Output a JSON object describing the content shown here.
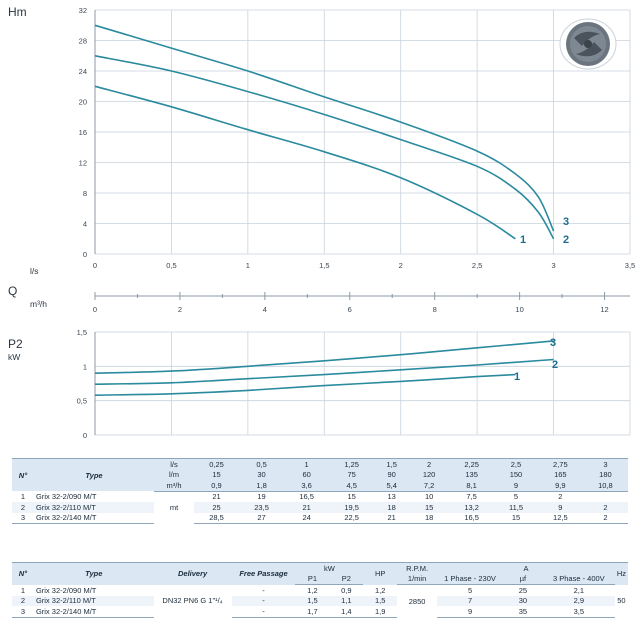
{
  "chart_data": [
    {
      "type": "line",
      "ylabel": "Hm",
      "xlabel_unit": "l/s",
      "x_ticks": [
        "0",
        "0,5",
        "1",
        "1,5",
        "2",
        "2,5",
        "3",
        "3,5"
      ],
      "y_ticks": [
        "0",
        "4",
        "8",
        "12",
        "16",
        "20",
        "24",
        "28",
        "32"
      ],
      "xlim": [
        0,
        3.5
      ],
      "ylim": [
        0,
        32
      ],
      "grid": true,
      "series": [
        {
          "name": "1",
          "x": [
            0,
            0.5,
            1,
            1.5,
            2,
            2.5,
            2.75
          ],
          "y": [
            22,
            19.3,
            16.3,
            13.4,
            10,
            5.2,
            2
          ]
        },
        {
          "name": "2",
          "x": [
            0,
            0.5,
            1,
            1.5,
            2,
            2.5,
            2.75,
            2.9,
            3
          ],
          "y": [
            26,
            24,
            21.3,
            18.3,
            15,
            11.5,
            8.5,
            5.5,
            2
          ]
        },
        {
          "name": "3",
          "x": [
            0,
            0.5,
            1,
            1.5,
            2,
            2.5,
            2.75,
            2.9,
            3
          ],
          "y": [
            30,
            27,
            24,
            20.6,
            17.3,
            13.5,
            10.5,
            7.5,
            3
          ]
        }
      ]
    },
    {
      "type": "axis",
      "xlabel": "Q",
      "xlabel_unit": "m³/h",
      "x_ticks": [
        "0",
        "2",
        "4",
        "6",
        "8",
        "10",
        "12"
      ],
      "xlim": [
        0,
        12.6
      ]
    },
    {
      "type": "line",
      "ylabel": "P2",
      "ylabel_unit": "kW",
      "y_ticks": [
        "0",
        "0,5",
        "1",
        "1,5"
      ],
      "ylim": [
        0,
        1.5
      ],
      "xlim": [
        0,
        3.5
      ],
      "grid": true,
      "series": [
        {
          "name": "1",
          "x": [
            0,
            0.5,
            1,
            1.5,
            2,
            2.5,
            2.75
          ],
          "y": [
            0.58,
            0.6,
            0.65,
            0.72,
            0.78,
            0.85,
            0.88
          ]
        },
        {
          "name": "2",
          "x": [
            0,
            0.5,
            1,
            1.5,
            2,
            2.5,
            3
          ],
          "y": [
            0.74,
            0.76,
            0.82,
            0.88,
            0.95,
            1.02,
            1.1
          ]
        },
        {
          "name": "3",
          "x": [
            0,
            0.5,
            1,
            1.5,
            2,
            2.5,
            3
          ],
          "y": [
            0.9,
            0.93,
            1.0,
            1.08,
            1.17,
            1.27,
            1.37
          ]
        }
      ]
    }
  ],
  "table1": {
    "col_no": "N°",
    "col_type": "Type",
    "unit_ls": "l/s",
    "unit_lm": "l/m",
    "unit_m3h": "m³/h",
    "unit_mt": "mt",
    "ls": [
      "0,25",
      "0,5",
      "1",
      "1,25",
      "1,5",
      "2",
      "2,25",
      "2,5",
      "2,75",
      "3"
    ],
    "lm": [
      "15",
      "30",
      "60",
      "75",
      "90",
      "120",
      "135",
      "150",
      "165",
      "180"
    ],
    "m3h": [
      "0,9",
      "1,8",
      "3,6",
      "4,5",
      "5,4",
      "7,2",
      "8,1",
      "9",
      "9,9",
      "10,8"
    ],
    "rows": [
      {
        "n": "1",
        "type": "Grix 32-2/090 M/T",
        "v": [
          "21",
          "19",
          "16,5",
          "15",
          "13",
          "10",
          "7,5",
          "5",
          "2",
          ""
        ]
      },
      {
        "n": "2",
        "type": "Grix 32-2/110 M/T",
        "v": [
          "25",
          "23,5",
          "21",
          "19,5",
          "18",
          "15",
          "13,2",
          "11,5",
          "9",
          "2"
        ]
      },
      {
        "n": "3",
        "type": "Grix 32-2/140 M/T",
        "v": [
          "28,5",
          "27",
          "24",
          "22,5",
          "21",
          "18",
          "16,5",
          "15",
          "12,5",
          "2"
        ]
      }
    ]
  },
  "table2": {
    "col_no": "N°",
    "col_type": "Type",
    "col_delivery": "Delivery",
    "col_free": "Free Passage",
    "col_kw": "kW",
    "col_p1": "P1",
    "col_p2": "P2",
    "col_hp": "HP",
    "col_rpm": "R.P.M.",
    "col_rpm_unit": "1/min",
    "col_a": "A",
    "col_1ph": "1 Phase - 230V",
    "col_uf": "µf",
    "col_3ph": "3 Phase - 400V",
    "col_hz": "Hz",
    "delivery": "DN32 PN6 G 1\"¹/₄",
    "rpm": "2850",
    "hz": "50",
    "rows": [
      {
        "n": "1",
        "type": "Grix 32-2/090 M/T",
        "free": "-",
        "p1": "1,2",
        "p2": "0,9",
        "hp": "1,2",
        "a1": "5",
        "uf": "25",
        "a3": "2,1"
      },
      {
        "n": "2",
        "type": "Grix 32-2/110 M/T",
        "free": "-",
        "p1": "1,5",
        "p2": "1,1",
        "hp": "1,5",
        "a1": "7",
        "uf": "30",
        "a3": "2,9"
      },
      {
        "n": "3",
        "type": "Grix 32-2/140 M/T",
        "free": "-",
        "p1": "1,7",
        "p2": "1,4",
        "hp": "1,9",
        "a1": "9",
        "uf": "35",
        "a3": "3,5"
      }
    ]
  },
  "impeller_icon": "impeller-icon"
}
